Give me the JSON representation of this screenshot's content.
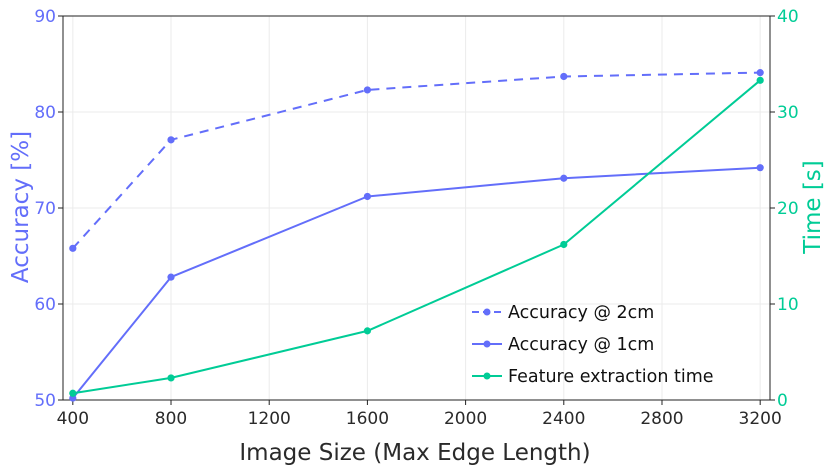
{
  "chart_data": {
    "type": "line",
    "xlabel": "Image Size (Max Edge Length)",
    "ylabel_left": "Accuracy [%]",
    "ylabel_right": "Time [s]",
    "x_ticks": [
      400,
      800,
      1200,
      1600,
      2000,
      2400,
      2800,
      3200
    ],
    "y_left_ticks": [
      50,
      60,
      70,
      80,
      90
    ],
    "y_right_ticks": [
      0,
      10,
      20,
      30,
      40
    ],
    "xlim": [
      360,
      3240
    ],
    "ylim_left": [
      50,
      90
    ],
    "ylim_right": [
      0,
      40
    ],
    "grid": true,
    "legend_position": "bottom-right",
    "colors": {
      "accuracy": "#636efa",
      "time": "#00cc96"
    },
    "series": [
      {
        "name": "Accuracy @ 2cm",
        "axis": "left",
        "style": "dashed",
        "color": "#636efa",
        "x": [
          400,
          800,
          1600,
          2400,
          3200
        ],
        "y": [
          65.8,
          77.1,
          82.3,
          83.7,
          84.1
        ]
      },
      {
        "name": "Accuracy @ 1cm",
        "axis": "left",
        "style": "solid",
        "color": "#636efa",
        "x": [
          400,
          800,
          1600,
          2400,
          3200
        ],
        "y": [
          50.2,
          62.8,
          71.2,
          73.1,
          74.2
        ]
      },
      {
        "name": "Feature extraction time",
        "axis": "right",
        "style": "solid",
        "color": "#00cc96",
        "x": [
          400,
          800,
          1600,
          2400,
          3200
        ],
        "y": [
          0.7,
          2.3,
          7.2,
          16.2,
          33.3
        ]
      }
    ]
  }
}
